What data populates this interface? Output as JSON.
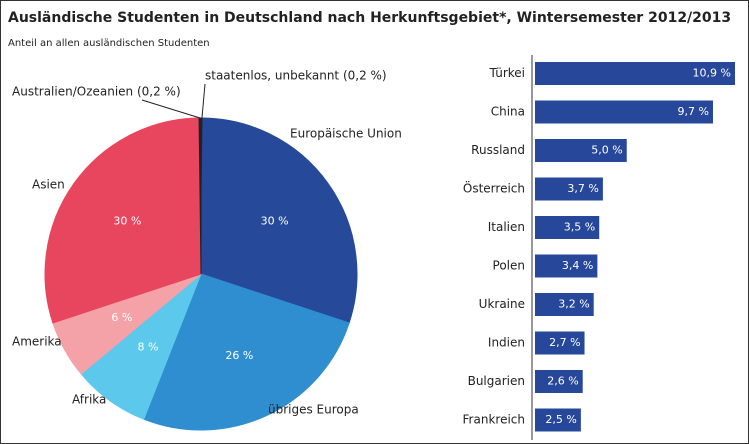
{
  "title": "Ausländische Studenten in Deutschland nach Herkunftsgebiet*, Wintersemester 2012/2013",
  "subtitle": "Anteil an allen ausländischen Studenten",
  "chart_data": [
    {
      "type": "pie",
      "categories": [
        "staatenlos, unbekannt (0,2 %)",
        "Europäische Union",
        "übriges Europa",
        "Afrika",
        "Amerika",
        "Asien",
        "Australien/Ozeanien (0,2 %)"
      ],
      "values": [
        0.2,
        30,
        26,
        8,
        6,
        30,
        0.2
      ],
      "value_labels": [
        null,
        "30 %",
        "26 %",
        "8 %",
        "6 %",
        "30 %",
        null
      ],
      "colors": [
        "#222222",
        "#26499a",
        "#2f8ecf",
        "#5bc8ec",
        "#f4a1a7",
        "#e8455e",
        "#222222"
      ]
    },
    {
      "type": "hbar",
      "categories": [
        "Türkei",
        "China",
        "Russland",
        "Österreich",
        "Italien",
        "Polen",
        "Ukraine",
        "Indien",
        "Bulgarien",
        "Frankreich"
      ],
      "values": [
        10.9,
        9.7,
        5.0,
        3.7,
        3.5,
        3.4,
        3.2,
        2.7,
        2.6,
        2.5
      ],
      "value_labels": [
        "10,9 %",
        "9,7 %",
        "5,0 %",
        "3,7 %",
        "3,5 %",
        "3,4 %",
        "3,2 %",
        "2,7 %",
        "2,6 %",
        "2,5 %"
      ],
      "color": "#26479a"
    }
  ]
}
